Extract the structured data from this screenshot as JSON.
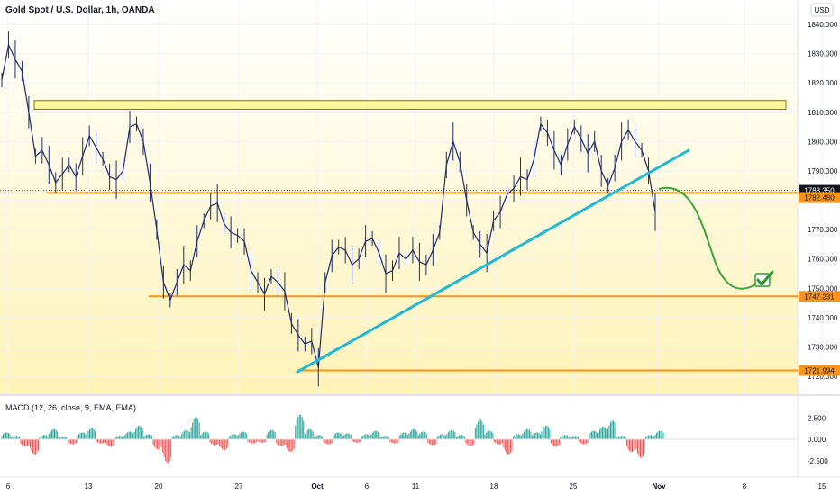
{
  "header": {
    "title": "Gold Spot / U.S. Dollar, 1h, OANDA",
    "currency": "USD"
  },
  "indicator": {
    "label": "MACD (12, 26, close, 9, EMA, EMA)"
  },
  "colors": {
    "up": "#26a69a",
    "down": "#ef5350",
    "candle": "#1e2d6e",
    "trendline": "#1fb8d6",
    "level": "#f7941d",
    "zone_fill": "#fff59d",
    "zone_border": "#8a7a00",
    "projection": "#3aa53a",
    "price_tag": "#131722"
  },
  "chart_data": [
    {
      "type": "line",
      "title": "Gold Spot / U.S. Dollar, 1h, OANDA",
      "ylim": [
        1715,
        1845
      ],
      "y_ticks": [
        "1720.000",
        "1730.000",
        "1740.000",
        "1750.000",
        "1760.000",
        "1770.000",
        "1780.000",
        "1790.000",
        "1800.000",
        "1810.000",
        "1820.000",
        "1830.000",
        "1840.000"
      ],
      "x_ticks": [
        "6",
        "13",
        "20",
        "27",
        "Oct",
        "6",
        "11",
        "18",
        "25",
        "Nov",
        "8",
        "15"
      ],
      "x_ticks_major": [
        "Oct",
        "Nov"
      ],
      "series": [
        {
          "values": [
            1821,
            1833,
            1828,
            1824,
            1810,
            1795,
            1797,
            1792,
            1786,
            1789,
            1792,
            1788,
            1795,
            1802,
            1798,
            1794,
            1788,
            1787,
            1790,
            1805,
            1806,
            1800,
            1786,
            1770,
            1752,
            1746,
            1752,
            1758,
            1756,
            1766,
            1773,
            1778,
            1779,
            1772,
            1769,
            1768,
            1766,
            1756,
            1752,
            1748,
            1754,
            1752,
            1749,
            1738,
            1734,
            1731,
            1732,
            1723,
            1752,
            1761,
            1764,
            1763,
            1758,
            1760,
            1766,
            1767,
            1762,
            1755,
            1756,
            1762,
            1760,
            1763,
            1759,
            1758,
            1763,
            1769,
            1792,
            1800,
            1793,
            1780,
            1769,
            1765,
            1762,
            1773,
            1776,
            1782,
            1784,
            1788,
            1787,
            1794,
            1806,
            1803,
            1797,
            1792,
            1799,
            1805,
            1801,
            1796,
            1800,
            1790,
            1785,
            1791,
            1800,
            1804,
            1800,
            1797,
            1790,
            1776
          ]
        }
      ],
      "price_labels": [
        "1783.350",
        "1782.480",
        "1747.231",
        "1721.994"
      ],
      "levels": [
        1782.48,
        1747.231,
        1721.994
      ],
      "zone": [
        1811,
        1814
      ],
      "trendline": {
        "start": [
          27,
          1721.5
        ],
        "end": [
          35.9,
          1797
        ]
      }
    },
    {
      "type": "bar",
      "title": "MACD (12, 26, close, 9, EMA, EMA)",
      "ylim": [
        -3.5,
        3.5
      ],
      "y_ticks": [
        "2.500",
        "0.000",
        "-2.500"
      ],
      "values": [
        0.8,
        0.4,
        -0.9,
        -1.8,
        0.5,
        1.2,
        0.3,
        -0.6,
        0.8,
        1.3,
        -0.5,
        -0.9,
        0.4,
        0.9,
        1.6,
        0.6,
        -1.2,
        -2.8,
        0.5,
        1.1,
        2.6,
        0.9,
        -0.7,
        -1.3,
        0.6,
        0.9,
        -0.5,
        -0.4,
        1.1,
        -0.8,
        -1.5,
        2.9,
        1.2,
        0.5,
        -0.6,
        0.8,
        0.7,
        -0.4,
        0.6,
        1.0,
        0.4,
        -0.5,
        0.8,
        1.2,
        0.9,
        -0.7,
        0.6,
        1.1,
        0.5,
        -0.8,
        2.3,
        1.0,
        -0.6,
        -1.8,
        0.6,
        1.2,
        0.8,
        1.6,
        -0.9,
        0.5,
        0.4,
        -0.6,
        1.0,
        1.5,
        2.2,
        0.4,
        -1.5,
        -2.2,
        0.5,
        1.0
      ]
    }
  ]
}
